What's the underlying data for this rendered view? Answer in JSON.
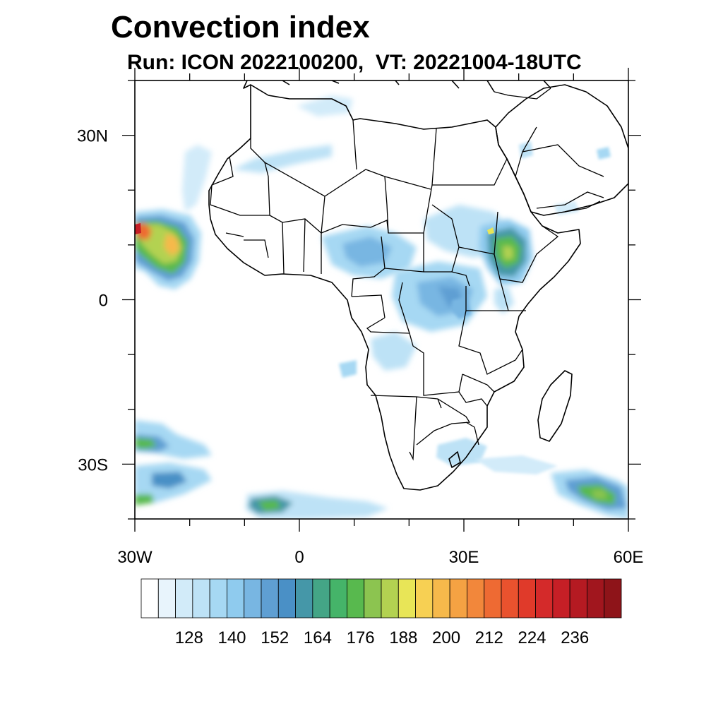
{
  "title": "Convection index",
  "subtitle": "Run: ICON 2022100200,  VT: 20221004-18UTC",
  "map": {
    "region": "Africa",
    "lon_range": [
      -30,
      60
    ],
    "lat_range": [
      -40,
      40
    ],
    "lat_ticks": [
      {
        "value": 30,
        "label": "30N"
      },
      {
        "value": 0,
        "label": "0"
      },
      {
        "value": -30,
        "label": "30S"
      }
    ],
    "lon_ticks": [
      {
        "value": -30,
        "label": "30W"
      },
      {
        "value": 0,
        "label": "0"
      },
      {
        "value": 30,
        "label": "30E"
      },
      {
        "value": 60,
        "label": "60E"
      }
    ]
  },
  "colorbar": {
    "labels": [
      "128",
      "140",
      "152",
      "164",
      "176",
      "188",
      "200",
      "212",
      "224",
      "236"
    ],
    "colors": [
      "#ffffff",
      "#e8f4fc",
      "#d2ebf9",
      "#bde2f6",
      "#a6d8f3",
      "#8fcbee",
      "#78b6e2",
      "#5f9fd3",
      "#4a90c6",
      "#4597a8",
      "#44a586",
      "#45b469",
      "#58b94e",
      "#8cc450",
      "#b3d251",
      "#e8e557",
      "#f7d053",
      "#f6b94b",
      "#f5a243",
      "#f2873b",
      "#ee6a33",
      "#e9522e",
      "#e03a2a",
      "#d42a2a",
      "#c61f26",
      "#b51a22",
      "#a1161e",
      "#8e1419"
    ]
  },
  "chart_data": {
    "type": "heatmap",
    "title": "Convection index",
    "subtitle": "Run: ICON 2022100200,  VT: 20221004-18UTC",
    "x_range": [
      -30,
      60
    ],
    "y_range": [
      -40,
      40
    ],
    "colorbar_levels": [
      128,
      140,
      152,
      164,
      176,
      188,
      200,
      212,
      224,
      236
    ],
    "annotations": [
      "Highest values (red/orange) near 12N 29W off West Africa",
      "Green/yellow values over Ethiopian Highlands",
      "Green bands in Southern Ocean near 35S"
    ]
  }
}
